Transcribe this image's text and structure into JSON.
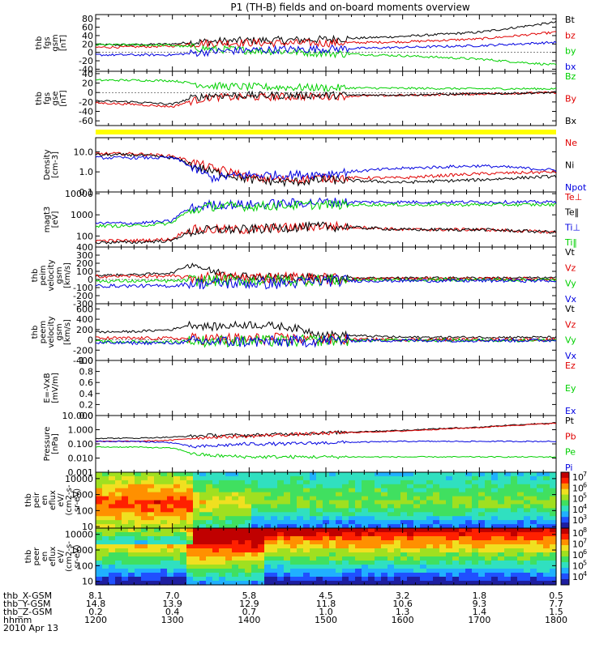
{
  "title": "P1 (TH-B) fields and on-board moments overview",
  "colors": {
    "black": "#000000",
    "red": "#e00000",
    "green": "#00d000",
    "blue": "#0000e0",
    "yellow": "#ffff00"
  },
  "panels": [
    {
      "id": "fgs_gsm",
      "ylabel": [
        "thb",
        "fgs",
        "gsm",
        "[nT]"
      ],
      "ticks": [
        "80",
        "60",
        "40",
        "20",
        "0",
        "-20",
        "-40"
      ],
      "tickvals": [
        80,
        60,
        40,
        20,
        0,
        -20,
        -40
      ],
      "ylim": [
        -45,
        90
      ],
      "scale": "linear",
      "legend": [
        {
          "text": "Bt",
          "color": "black"
        },
        {
          "text": "bz",
          "color": "red"
        },
        {
          "text": "by",
          "color": "green"
        },
        {
          "text": "bx",
          "color": "blue"
        }
      ]
    },
    {
      "id": "fgs_gse",
      "ylabel": [
        "thb",
        "fgs",
        "gse",
        "[nT]"
      ],
      "ticks": [
        "40",
        "20",
        "0",
        "-20",
        "-40",
        "-60"
      ],
      "tickvals": [
        40,
        20,
        0,
        -20,
        -40,
        -60
      ],
      "ylim": [
        -70,
        45
      ],
      "scale": "linear",
      "legend": [
        {
          "text": "Bz",
          "color": "green"
        },
        {
          "text": "By",
          "color": "red"
        },
        {
          "text": "Bx",
          "color": "black"
        }
      ]
    },
    {
      "id": "density",
      "ylabel": [
        "Density",
        "[cm-3]"
      ],
      "ticks": [
        "10.0",
        "1.0",
        "0.1"
      ],
      "tickvals": [
        10,
        1,
        0.1
      ],
      "ylim": [
        0.1,
        50
      ],
      "scale": "log",
      "legend": [
        {
          "text": "Ne",
          "color": "red"
        },
        {
          "text": "Ni",
          "color": "black"
        },
        {
          "text": "Npot",
          "color": "blue"
        }
      ]
    },
    {
      "id": "temperature",
      "ylabel": [
        "magt3",
        "[eV]"
      ],
      "ticks": [
        "10000",
        "1000",
        "100"
      ],
      "tickvals": [
        10000,
        1000,
        100
      ],
      "ylim": [
        30,
        12000
      ],
      "scale": "log",
      "legend": [
        {
          "text": "Te⊥",
          "color": "red"
        },
        {
          "text": "Te‖",
          "color": "black"
        },
        {
          "text": "Ti⊥",
          "color": "blue"
        },
        {
          "text": "Ti‖",
          "color": "green"
        }
      ]
    },
    {
      "id": "peim_velocity",
      "ylabel": [
        "thb",
        "peim",
        "velocity",
        "gsm",
        "[km/s]"
      ],
      "ticks": [
        "400",
        "300",
        "200",
        "100",
        "0",
        "-100",
        "-200",
        "-300"
      ],
      "tickvals": [
        400,
        300,
        200,
        100,
        0,
        -100,
        -200,
        -300
      ],
      "ylim": [
        -300,
        400
      ],
      "scale": "linear",
      "legend": [
        {
          "text": "Vt",
          "color": "black"
        },
        {
          "text": "Vz",
          "color": "red"
        },
        {
          "text": "Vy",
          "color": "green"
        },
        {
          "text": "Vx",
          "color": "blue"
        }
      ]
    },
    {
      "id": "peem_velocity",
      "ylabel": [
        "thb",
        "peem",
        "velocity",
        "gsm",
        "[km/s]"
      ],
      "ticks": [
        "600",
        "400",
        "200",
        "0",
        "-200",
        "-400"
      ],
      "tickvals": [
        600,
        400,
        200,
        0,
        -200,
        -400
      ],
      "ylim": [
        -400,
        700
      ],
      "scale": "linear",
      "legend": [
        {
          "text": "Vt",
          "color": "black"
        },
        {
          "text": "Vz",
          "color": "red"
        },
        {
          "text": "Vy",
          "color": "green"
        },
        {
          "text": "Vx",
          "color": "blue"
        }
      ]
    },
    {
      "id": "efield",
      "ylabel": [
        "E=-VxB",
        "[mV/m]"
      ],
      "ticks": [
        "1.0",
        "0.8",
        "0.6",
        "0.4",
        "0.2",
        "0.0"
      ],
      "tickvals": [
        1,
        0.8,
        0.6,
        0.4,
        0.2,
        0
      ],
      "ylim": [
        0,
        1
      ],
      "scale": "linear",
      "legend": [
        {
          "text": "Ez",
          "color": "red"
        },
        {
          "text": "Ey",
          "color": "green"
        },
        {
          "text": "Ex",
          "color": "blue"
        }
      ]
    },
    {
      "id": "pressure",
      "ylabel": [
        "Pressure",
        "[nPa]"
      ],
      "ticks": [
        "10.000",
        "1.000",
        "0.100",
        "0.010",
        "0.001"
      ],
      "tickvals": [
        10,
        1,
        0.1,
        0.01,
        0.001
      ],
      "ylim": [
        0.001,
        10
      ],
      "scale": "log",
      "legend": [
        {
          "text": "Pt",
          "color": "black"
        },
        {
          "text": "Pb",
          "color": "red"
        },
        {
          "text": "Pe",
          "color": "green"
        },
        {
          "text": "Pi",
          "color": "blue"
        }
      ]
    },
    {
      "id": "peir_spec",
      "ylabel": [
        "thb",
        "peir",
        "en",
        "eflux",
        "eV/",
        "(cm2-s-",
        "sr-eV)"
      ],
      "ticks": [
        "10000",
        "1000",
        "100",
        "10"
      ],
      "tickvals": [
        10000,
        1000,
        100,
        10
      ],
      "ylim": [
        8,
        25000
      ],
      "scale": "log",
      "colorbar": {
        "ticks": [
          "10",
          "10",
          "10",
          "10",
          "10"
        ],
        "exps": [
          "7",
          "6",
          "5",
          "4",
          "3"
        ]
      }
    },
    {
      "id": "peer_spec",
      "ylabel": [
        "thb",
        "peer",
        "en",
        "eflux",
        "eV/",
        "(cm2-s-",
        "sr-eV)"
      ],
      "ticks": [
        "10000",
        "1000",
        "100",
        "10"
      ],
      "tickvals": [
        10000,
        1000,
        100,
        10
      ],
      "ylim": [
        6,
        25000
      ],
      "scale": "log",
      "colorbar": {
        "ticks": [
          "10",
          "10",
          "10",
          "10",
          "10"
        ],
        "exps": [
          "8",
          "7",
          "6",
          "5",
          "4"
        ]
      }
    }
  ],
  "xaxis": {
    "rows": [
      {
        "label": "thb_X-GSM",
        "values": [
          "8.1",
          "7.0",
          "5.8",
          "4.5",
          "3.2",
          "1.8",
          "0.5"
        ]
      },
      {
        "label": "thb_Y-GSM",
        "values": [
          "14.8",
          "13.9",
          "12.9",
          "11.8",
          "10.6",
          "9.3",
          "7.7"
        ]
      },
      {
        "label": "thb_Z-GSM",
        "values": [
          "0.2",
          "0.4",
          "0.7",
          "1.0",
          "1.3",
          "1.4",
          "1.5"
        ]
      },
      {
        "label": "hhmm",
        "values": [
          "1200",
          "1300",
          "1400",
          "1500",
          "1600",
          "1700",
          "1800"
        ]
      }
    ],
    "date": "2010 Apr 13",
    "hours": [
      12,
      13,
      14,
      15,
      16,
      17,
      18
    ]
  },
  "chart_data": {
    "type": "line",
    "title": "P1 (TH-B) fields and on-board moments overview",
    "x": [
      1200,
      1230,
      1300,
      1315,
      1330,
      1400,
      1430,
      1500,
      1600,
      1700,
      1800
    ],
    "xlabel": "hhmm",
    "xlim": [
      "1200",
      "1800"
    ],
    "series": [
      {
        "name": "Bt",
        "panel": "fgs_gsm",
        "values": [
          18,
          18,
          20,
          24,
          26,
          28,
          29,
          31,
          38,
          48,
          72
        ]
      },
      {
        "name": "bz",
        "panel": "fgs_gsm",
        "values": [
          12,
          13,
          15,
          20,
          22,
          23,
          22,
          22,
          25,
          32,
          48
        ]
      },
      {
        "name": "by",
        "panel": "fgs_gsm",
        "values": [
          18,
          18,
          17,
          12,
          8,
          5,
          2,
          -2,
          -8,
          -16,
          -30
        ]
      },
      {
        "name": "bx",
        "panel": "fgs_gsm",
        "values": [
          -6,
          -6,
          -6,
          -2,
          2,
          5,
          7,
          8,
          12,
          16,
          24
        ]
      },
      {
        "name": "Bz",
        "panel": "fgs_gse",
        "values": [
          26,
          26,
          25,
          20,
          14,
          12,
          11,
          10,
          9,
          8,
          8
        ]
      },
      {
        "name": "By",
        "panel": "fgs_gse",
        "values": [
          -22,
          -25,
          -30,
          -18,
          -10,
          -10,
          -9,
          -8,
          -6,
          -3,
          0
        ]
      },
      {
        "name": "Bx",
        "panel": "fgs_gse",
        "values": [
          -18,
          -20,
          -25,
          -12,
          -6,
          -6,
          -6,
          -6,
          -5,
          -3,
          0
        ]
      },
      {
        "name": "Ne",
        "panel": "density",
        "values": [
          8,
          8,
          6,
          3,
          1.5,
          0.5,
          0.4,
          0.5,
          0.5,
          0.8,
          1
        ]
      },
      {
        "name": "Ni",
        "panel": "density",
        "values": [
          7,
          7,
          5,
          2,
          1,
          0.4,
          0.3,
          0.4,
          0.3,
          0.4,
          0.6
        ]
      },
      {
        "name": "Npot",
        "panel": "density",
        "values": [
          5,
          5,
          5,
          1.5,
          0.5,
          0.7,
          0.7,
          0.8,
          1.5,
          2,
          1.2
        ]
      },
      {
        "name": "Te⊥",
        "panel": "temperature",
        "values": [
          60,
          60,
          70,
          200,
          200,
          200,
          250,
          300,
          200,
          200,
          150
        ]
      },
      {
        "name": "Te‖",
        "panel": "temperature",
        "values": [
          50,
          50,
          60,
          150,
          200,
          200,
          250,
          280,
          200,
          200,
          150
        ]
      },
      {
        "name": "Ti⊥",
        "panel": "temperature",
        "values": [
          400,
          400,
          500,
          2000,
          3000,
          3000,
          3500,
          4000,
          4000,
          4000,
          4000
        ]
      },
      {
        "name": "Ti‖",
        "panel": "temperature",
        "values": [
          300,
          300,
          400,
          1500,
          2500,
          2500,
          2800,
          3000,
          3000,
          3000,
          3000
        ]
      },
      {
        "name": "Vt (peim)",
        "panel": "peim_velocity",
        "values": [
          50,
          60,
          80,
          200,
          100,
          40,
          30,
          20,
          20,
          20,
          20
        ]
      },
      {
        "name": "Vt (peem)",
        "panel": "peem_velocity",
        "values": [
          150,
          160,
          200,
          300,
          250,
          300,
          250,
          100,
          50,
          50,
          50
        ]
      },
      {
        "name": "Pt",
        "panel": "pressure",
        "values": [
          0.25,
          0.25,
          0.3,
          0.35,
          0.4,
          0.4,
          0.5,
          0.6,
          0.9,
          1.5,
          3
        ]
      },
      {
        "name": "Pb",
        "panel": "pressure",
        "values": [
          0.15,
          0.15,
          0.18,
          0.25,
          0.3,
          0.35,
          0.45,
          0.55,
          0.8,
          1.4,
          2.8
        ]
      },
      {
        "name": "Pe",
        "panel": "pressure",
        "values": [
          0.06,
          0.06,
          0.05,
          0.02,
          0.015,
          0.012,
          0.012,
          0.012,
          0.012,
          0.012,
          0.012
        ]
      },
      {
        "name": "Pi",
        "panel": "pressure",
        "values": [
          0.15,
          0.15,
          0.12,
          0.06,
          0.07,
          0.1,
          0.1,
          0.12,
          0.15,
          0.15,
          0.15
        ]
      }
    ]
  }
}
